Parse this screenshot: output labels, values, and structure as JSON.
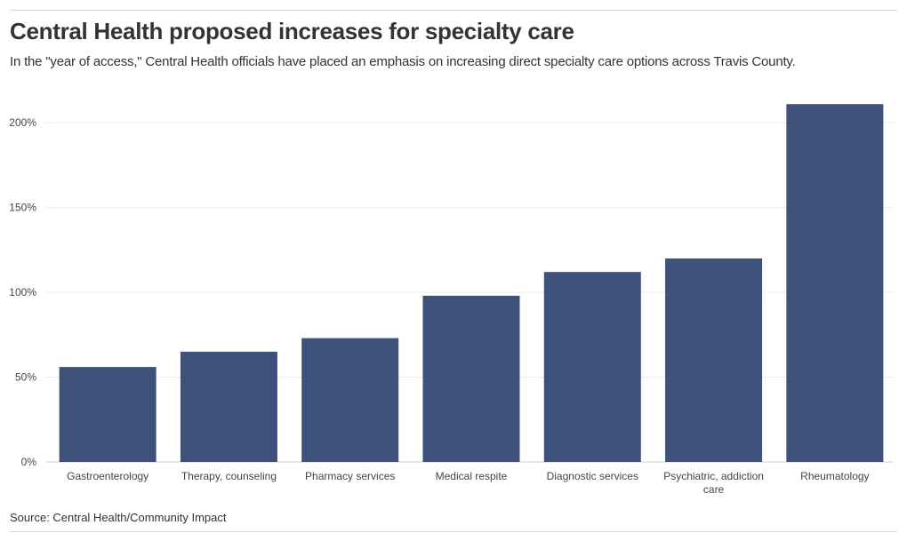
{
  "header": {
    "title": "Central Health proposed increases for specialty care",
    "subtitle": "In the \"year of access,\" Central Health officials have placed an emphasis on increasing direct specialty care options across Travis County."
  },
  "footer": {
    "source": "Source: Central Health/Community Impact"
  },
  "chart_data": {
    "type": "bar",
    "title": "Central Health proposed increases for specialty care",
    "xlabel": "",
    "ylabel": "",
    "categories": [
      "Gastroenterology",
      "Therapy, counseling",
      "Pharmacy services",
      "Medical respite",
      "Diagnostic services",
      "Psychiatric, addiction care",
      "Rheumatology"
    ],
    "category_lines": [
      [
        "Gastroenterology"
      ],
      [
        "Therapy, counseling"
      ],
      [
        "Pharmacy services"
      ],
      [
        "Medical respite"
      ],
      [
        "Diagnostic services"
      ],
      [
        "Psychiatric, addiction",
        "care"
      ],
      [
        "Rheumatology"
      ]
    ],
    "values": [
      56,
      65,
      73,
      98,
      112,
      120,
      211
    ],
    "ylim": [
      0,
      220
    ],
    "yticks": [
      0,
      50,
      100,
      150,
      200
    ],
    "ytick_labels": [
      "0%",
      "50%",
      "100%",
      "150%",
      "200%"
    ],
    "grid": true,
    "bar_color": "#2e4270"
  }
}
